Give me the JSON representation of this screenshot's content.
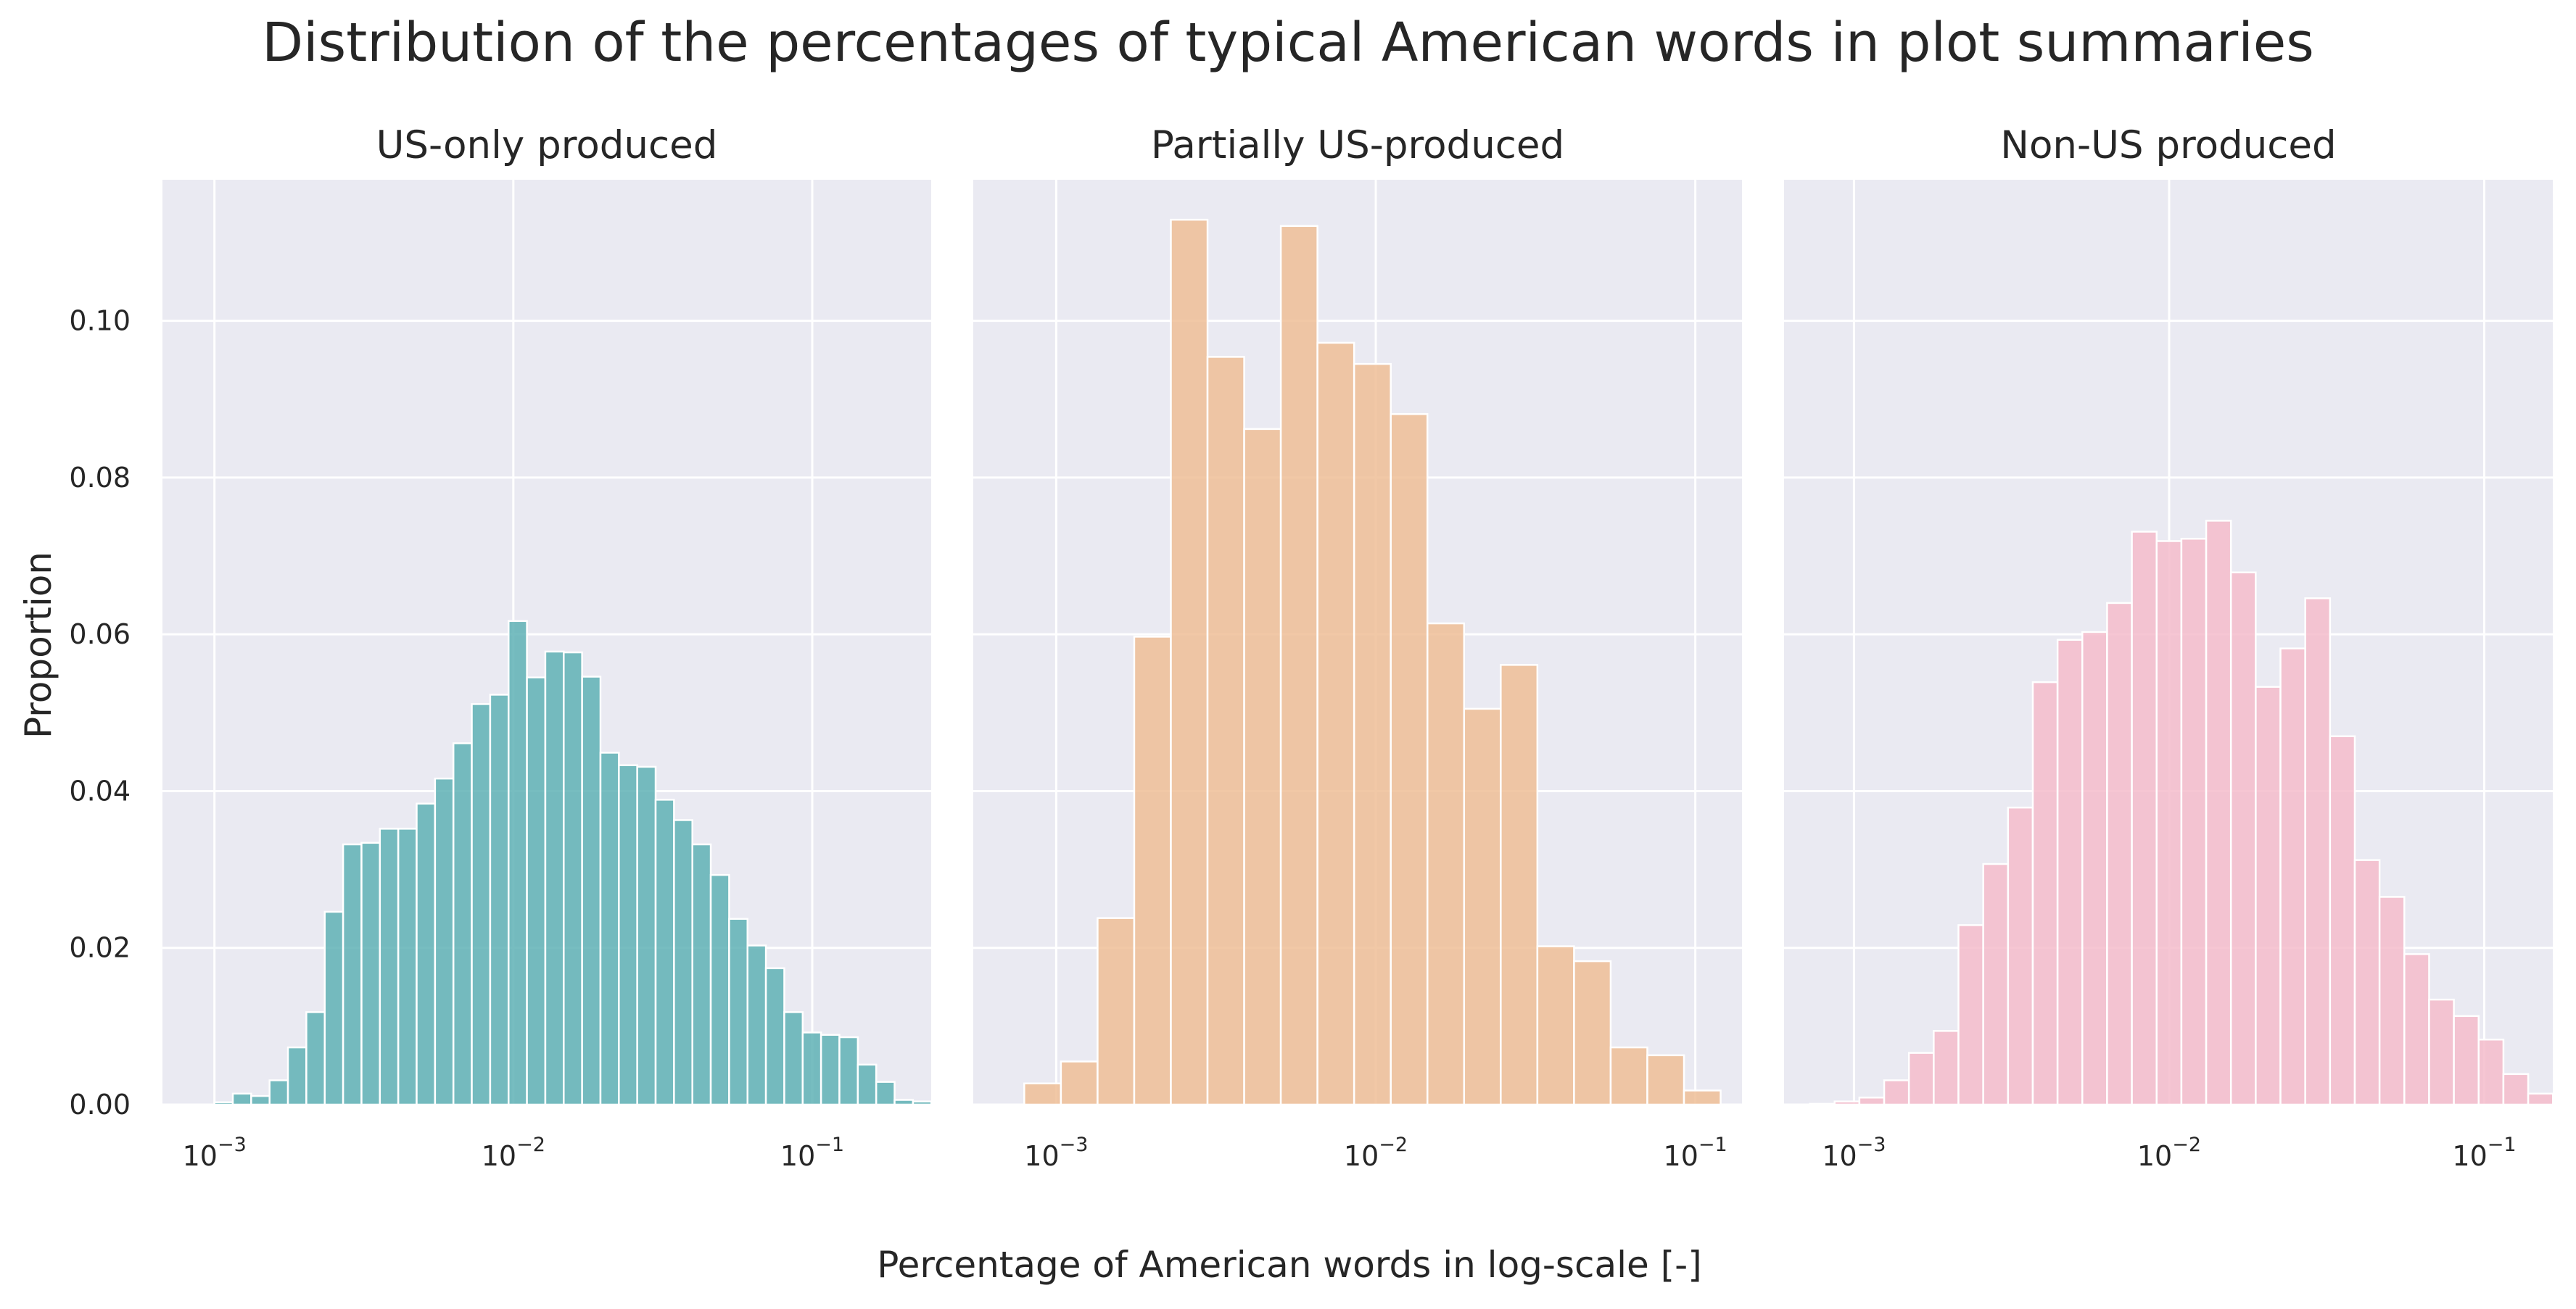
{
  "figure": {
    "title": "Distribution of the percentages of typical American words in plot summaries",
    "xlabel": "Percentage of American words in log-scale [-]",
    "ylabel": "Proportion"
  },
  "chart_data": [
    {
      "type": "bar",
      "title": "US-only produced",
      "x_scale": "log",
      "xlim": [
        0.00067,
        0.25
      ],
      "ylim": [
        0,
        0.118
      ],
      "xticks": [
        {
          "value": 0.001,
          "base": "10",
          "exp": "−3"
        },
        {
          "value": 0.01,
          "base": "10",
          "exp": "−2"
        },
        {
          "value": 0.1,
          "base": "10",
          "exp": "−1"
        }
      ],
      "yticks": [
        "0.00",
        "0.02",
        "0.04",
        "0.06",
        "0.08",
        "0.10"
      ],
      "grid": true,
      "color": "#5fb1b5",
      "log_bin_start": -3.0,
      "log_bin_width": 0.0615,
      "values": [
        0.0003,
        0.0014,
        0.0011,
        0.0031,
        0.0073,
        0.0118,
        0.0246,
        0.0332,
        0.0334,
        0.0352,
        0.0352,
        0.0384,
        0.0416,
        0.0461,
        0.0511,
        0.0523,
        0.0617,
        0.0545,
        0.0578,
        0.0577,
        0.0546,
        0.0449,
        0.0433,
        0.0431,
        0.0389,
        0.0363,
        0.0332,
        0.0293,
        0.0237,
        0.0203,
        0.0174,
        0.0118,
        0.0092,
        0.0089,
        0.0086,
        0.0051,
        0.0029,
        0.0006,
        0.0004,
        0.0002,
        0.0001
      ]
    },
    {
      "type": "bar",
      "title": "Partially US-produced",
      "x_scale": "log",
      "xlim": [
        0.00055,
        0.14
      ],
      "ylim": [
        0,
        0.118
      ],
      "xticks": [
        {
          "value": 0.001,
          "base": "10",
          "exp": "−3"
        },
        {
          "value": 0.01,
          "base": "10",
          "exp": "−2"
        },
        {
          "value": 0.1,
          "base": "10",
          "exp": "−1"
        }
      ],
      "yticks": [
        "0.00",
        "0.02",
        "0.04",
        "0.06",
        "0.08",
        "0.10"
      ],
      "grid": true,
      "color": "#eebe97",
      "log_bin_start": -3.1,
      "log_bin_width": 0.1147,
      "values": [
        0.0027,
        0.0055,
        0.0238,
        0.0597,
        0.1129,
        0.0954,
        0.0862,
        0.1121,
        0.0972,
        0.0945,
        0.0881,
        0.0614,
        0.0505,
        0.0561,
        0.0202,
        0.0183,
        0.0073,
        0.0063,
        0.0018
      ]
    },
    {
      "type": "bar",
      "title": "Non-US produced",
      "x_scale": "log",
      "xlim": [
        0.0006,
        0.165
      ],
      "ylim": [
        0,
        0.118
      ],
      "xticks": [
        {
          "value": 0.001,
          "base": "10",
          "exp": "−3"
        },
        {
          "value": 0.01,
          "base": "10",
          "exp": "−2"
        },
        {
          "value": 0.1,
          "base": "10",
          "exp": "−1"
        }
      ],
      "yticks": [
        "0.00",
        "0.02",
        "0.04",
        "0.06",
        "0.08",
        "0.10"
      ],
      "grid": true,
      "color": "#f5bccb",
      "log_bin_start": -3.14,
      "log_bin_width": 0.0786,
      "values": [
        0.0001,
        0.0004,
        0.0009,
        0.0031,
        0.0066,
        0.0094,
        0.0229,
        0.0307,
        0.0379,
        0.0539,
        0.0593,
        0.0603,
        0.064,
        0.0731,
        0.0719,
        0.0722,
        0.0745,
        0.0679,
        0.0533,
        0.0582,
        0.0646,
        0.047,
        0.0312,
        0.0265,
        0.0192,
        0.0134,
        0.0113,
        0.0083,
        0.0039,
        0.0014
      ]
    }
  ]
}
